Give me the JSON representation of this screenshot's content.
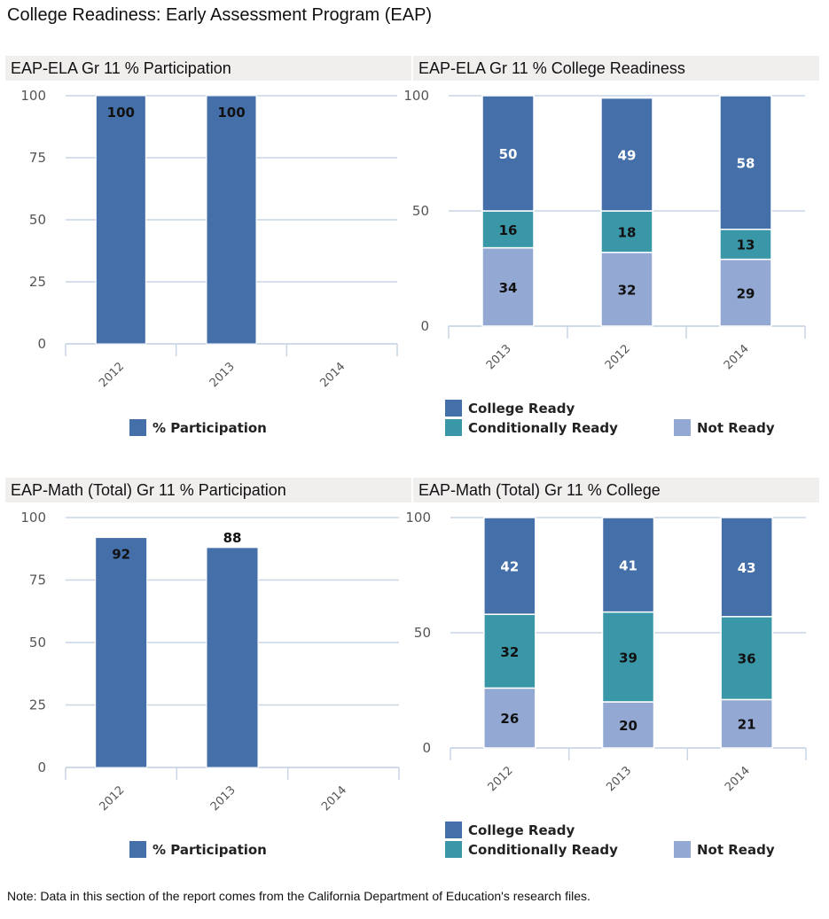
{
  "page": {
    "title": "College Readiness: Early Assessment Program (EAP)",
    "note": "Note: Data in this section of the report comes from the California Department of Education's research files."
  },
  "colors": {
    "college_ready": "#456fa8",
    "conditionally_ready": "#3a97a8",
    "not_ready": "#93a8d2",
    "header_bg": "#f1eeee",
    "grid": "#c9d6e6"
  },
  "chart_data": [
    {
      "id": "ela-participation",
      "type": "bar",
      "title": "EAP-ELA Gr 11 % Participation",
      "categories": [
        "2012",
        "2013",
        "2014"
      ],
      "series": [
        {
          "name": "% Participation",
          "values": [
            100,
            100,
            null
          ]
        }
      ],
      "ylim": [
        0,
        100
      ],
      "yticks": [
        0,
        25,
        50,
        75,
        100
      ],
      "grid": true,
      "legend": "bottom"
    },
    {
      "id": "ela-readiness",
      "type": "bar",
      "stacked": true,
      "title": "EAP-ELA Gr 11 % College Readiness",
      "categories": [
        "2013",
        "2012",
        "2014"
      ],
      "series": [
        {
          "name": "Not Ready",
          "values": [
            34,
            32,
            29
          ]
        },
        {
          "name": "Conditionally Ready",
          "values": [
            16,
            18,
            13
          ]
        },
        {
          "name": "College Ready",
          "values": [
            50,
            49,
            58
          ]
        }
      ],
      "ylim": [
        0,
        100
      ],
      "yticks": [
        0,
        50,
        100
      ],
      "grid": true,
      "legend": "bottom"
    },
    {
      "id": "math-participation",
      "type": "bar",
      "title": "EAP-Math (Total) Gr 11 % Participation",
      "categories": [
        "2012",
        "2013",
        "2014"
      ],
      "series": [
        {
          "name": "% Participation",
          "values": [
            92,
            88,
            null
          ]
        }
      ],
      "ylim": [
        0,
        100
      ],
      "yticks": [
        0,
        25,
        50,
        75,
        100
      ],
      "grid": true,
      "legend": "bottom"
    },
    {
      "id": "math-readiness",
      "type": "bar",
      "stacked": true,
      "title": "EAP-Math (Total) Gr 11 % College",
      "categories": [
        "2012",
        "2013",
        "2014"
      ],
      "series": [
        {
          "name": "Not Ready",
          "values": [
            26,
            20,
            21
          ]
        },
        {
          "name": "Conditionally Ready",
          "values": [
            32,
            39,
            36
          ]
        },
        {
          "name": "College Ready",
          "values": [
            42,
            41,
            43
          ]
        }
      ],
      "ylim": [
        0,
        100
      ],
      "yticks": [
        0,
        50,
        100
      ],
      "grid": true,
      "legend": "bottom"
    }
  ]
}
